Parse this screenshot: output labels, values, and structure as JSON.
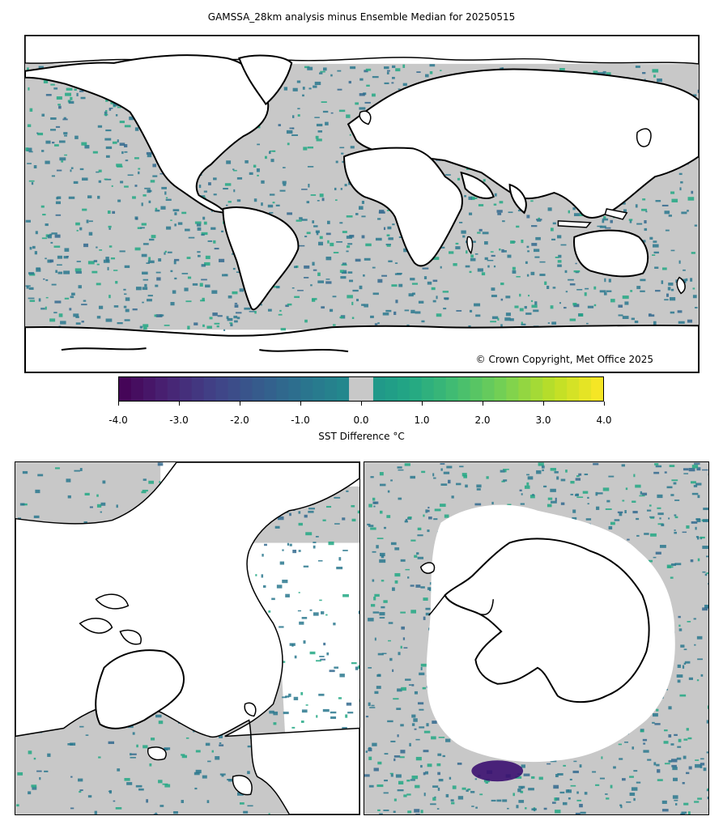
{
  "title": "GAMSSA_28km analysis minus Ensemble Median for 20250515",
  "copyright": "© Crown Copyright, Met Office 2025",
  "colorbar": {
    "label": "SST Difference °C",
    "ticks": [
      "-4.0",
      "-3.0",
      "-2.0",
      "-1.0",
      "0.0",
      "1.0",
      "2.0",
      "3.0",
      "4.0"
    ],
    "range": [
      -4.0,
      4.0
    ],
    "colormap": "viridis",
    "neutral_band": [
      -0.2,
      0.2
    ],
    "neutral_color": "#c8c8c8"
  },
  "colors": {
    "ocean_neutral": "#c8c8c8",
    "land": "#ffffff",
    "coast": "#000000",
    "teal": "#2a788e",
    "green": "#22a884",
    "dark_purple": "#3b0f70"
  },
  "panels": [
    {
      "name": "global",
      "projection": "plate-carree"
    },
    {
      "name": "arctic",
      "projection": "north-polar-stereographic"
    },
    {
      "name": "antarctic",
      "projection": "south-polar-stereographic"
    }
  ]
}
